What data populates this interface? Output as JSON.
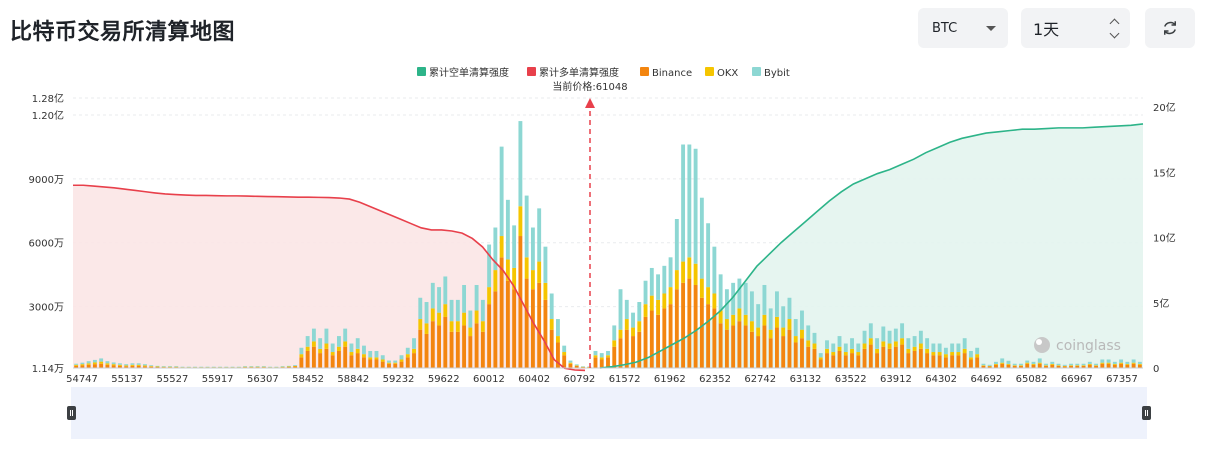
{
  "title": "比特币交易所清算地图",
  "controls": {
    "symbol": "BTC",
    "period": "1天",
    "refresh_icon": "refresh-icon"
  },
  "colors": {
    "short_cum": "#2db489",
    "long_cum": "#e8404b",
    "binance": "#f3850f",
    "okx": "#f5c500",
    "bybit": "#8dd7d3"
  },
  "watermark": "coinglass",
  "chart_data": {
    "type": "bar",
    "current_price_label": "当前价格:61048",
    "current_price": 61048,
    "legend": [
      "累计空单清算强度",
      "累计多单清算强度",
      "Binance",
      "OKX",
      "Bybit"
    ],
    "legend_placement": "top-center",
    "x_ticks": [
      "54747",
      "55137",
      "55527",
      "55917",
      "56307",
      "58452",
      "58842",
      "59232",
      "59622",
      "60012",
      "60402",
      "60792",
      "61572",
      "61962",
      "62352",
      "62742",
      "63132",
      "63522",
      "63912",
      "64302",
      "64692",
      "65082",
      "66967",
      "67357"
    ],
    "y_left_ticks": [
      "1.14万",
      "3000万",
      "6000万",
      "9000万",
      "1.20亿",
      "1.28亿"
    ],
    "y_left_values": [
      0.0114,
      0.3,
      0.6,
      0.9,
      1.2,
      1.28
    ],
    "y_left_unit": "亿",
    "y_right_ticks": [
      "0",
      "5亿",
      "10亿",
      "15亿",
      "20亿"
    ],
    "y_right_values": [
      0,
      5,
      10,
      15,
      20
    ],
    "long_cumulative": [
      0.87,
      0.87,
      0.866,
      0.862,
      0.858,
      0.852,
      0.846,
      0.84,
      0.834,
      0.829,
      0.826,
      0.824,
      0.822,
      0.822,
      0.821,
      0.82,
      0.82,
      0.819,
      0.818,
      0.817,
      0.816,
      0.815,
      0.814,
      0.814,
      0.813,
      0.812,
      0.81,
      0.805,
      0.79,
      0.77,
      0.75,
      0.73,
      0.71,
      0.69,
      0.67,
      0.66,
      0.66,
      0.655,
      0.645,
      0.62,
      0.58,
      0.52,
      0.47,
      0.4,
      0.31,
      0.22,
      0.14,
      0.05,
      0.01,
      0.002,
      0
    ],
    "short_cumulative": [
      0,
      0.1,
      0.25,
      0.45,
      0.8,
      1.3,
      1.8,
      2.3,
      2.9,
      3.6,
      4.4,
      5.4,
      6.6,
      7.8,
      8.7,
      9.6,
      10.4,
      11.2,
      12,
      12.8,
      13.5,
      14.1,
      14.5,
      14.9,
      15.2,
      15.6,
      16,
      16.5,
      16.9,
      17.3,
      17.6,
      17.8,
      18,
      18.1,
      18.2,
      18.3,
      18.3,
      18.35,
      18.4,
      18.4,
      18.4,
      18.45,
      18.5,
      18.55,
      18.6,
      18.7
    ],
    "binance": [
      0.01,
      0.012,
      0.015,
      0.018,
      0.02,
      0.015,
      0.012,
      0.01,
      0.008,
      0.01,
      0.01,
      0.008,
      0.006,
      0.005,
      0.004,
      0.004,
      0.004,
      0.003,
      0.003,
      0.003,
      0.003,
      0.003,
      0.003,
      0.003,
      0.003,
      0.003,
      0.003,
      0.004,
      0.004,
      0.004,
      0.004,
      0.003,
      0.003,
      0.004,
      0.005,
      0.007,
      0.05,
      0.08,
      0.1,
      0.07,
      0.09,
      0.06,
      0.08,
      0.1,
      0.06,
      0.07,
      0.05,
      0.04,
      0.04,
      0.03,
      0.02,
      0.02,
      0.03,
      0.05,
      0.07,
      0.18,
      0.16,
      0.22,
      0.2,
      0.24,
      0.17,
      0.17,
      0.2,
      0.15,
      0.21,
      0.17,
      0.3,
      0.36,
      0.52,
      0.41,
      0.37,
      0.62,
      0.42,
      0.37,
      0.4,
      0.32,
      0.18,
      0.12,
      0.06,
      0.02,
      0.01,
      0.005,
      0.004,
      0.05,
      0.04,
      0.05,
      0.1,
      0.14,
      0.18,
      0.15,
      0.17,
      0.24,
      0.27,
      0.25,
      0.28,
      0.3,
      0.37,
      0.4,
      0.42,
      0.39,
      0.33,
      0.3,
      0.28,
      0.21,
      0.18,
      0.2,
      0.22,
      0.2,
      0.17,
      0.15,
      0.2,
      0.14,
      0.19,
      0.15,
      0.18,
      0.12,
      0.14,
      0.1,
      0.09,
      0.04,
      0.07,
      0.06,
      0.08,
      0.06,
      0.07,
      0.06,
      0.09,
      0.11,
      0.07,
      0.1,
      0.09,
      0.1,
      0.11,
      0.07,
      0.08,
      0.09,
      0.07,
      0.06,
      0.06,
      0.05,
      0.06,
      0.06,
      0.07,
      0.04,
      0.05,
      0.01,
      0.008,
      0.015,
      0.02,
      0.015,
      0.01,
      0.01,
      0.02,
      0.015,
      0.02,
      0.01,
      0.015,
      0.01,
      0.008,
      0.01,
      0.01,
      0.01,
      0.015,
      0.01,
      0.02,
      0.02,
      0.015,
      0.02,
      0.015,
      0.02,
      0.015
    ],
    "okx": [
      0.005,
      0.006,
      0.007,
      0.008,
      0.01,
      0.007,
      0.006,
      0.005,
      0.004,
      0.005,
      0.005,
      0.004,
      0.003,
      0.002,
      0.002,
      0.002,
      0.002,
      0.001,
      0.001,
      0.001,
      0.001,
      0.001,
      0.001,
      0.001,
      0.001,
      0.001,
      0.001,
      0.002,
      0.002,
      0.002,
      0.002,
      0.001,
      0.001,
      0.002,
      0.002,
      0.003,
      0.015,
      0.02,
      0.025,
      0.02,
      0.025,
      0.015,
      0.02,
      0.025,
      0.015,
      0.02,
      0.015,
      0.01,
      0.01,
      0.01,
      0.005,
      0.005,
      0.01,
      0.015,
      0.02,
      0.05,
      0.05,
      0.06,
      0.06,
      0.06,
      0.05,
      0.05,
      0.06,
      0.04,
      0.06,
      0.05,
      0.08,
      0.1,
      0.1,
      0.1,
      0.1,
      0.14,
      0.1,
      0.09,
      0.1,
      0.08,
      0.05,
      0.03,
      0.015,
      0.005,
      0.002,
      0.001,
      0.001,
      0.01,
      0.01,
      0.01,
      0.03,
      0.04,
      0.05,
      0.04,
      0.05,
      0.06,
      0.07,
      0.07,
      0.07,
      0.08,
      0.09,
      0.1,
      0.1,
      0.1,
      0.09,
      0.08,
      0.07,
      0.06,
      0.05,
      0.05,
      0.06,
      0.05,
      0.05,
      0.04,
      0.05,
      0.04,
      0.05,
      0.04,
      0.05,
      0.03,
      0.04,
      0.03,
      0.025,
      0.01,
      0.02,
      0.015,
      0.02,
      0.015,
      0.02,
      0.015,
      0.025,
      0.03,
      0.02,
      0.025,
      0.025,
      0.025,
      0.03,
      0.02,
      0.02,
      0.025,
      0.02,
      0.015,
      0.015,
      0.015,
      0.015,
      0.015,
      0.02,
      0.01,
      0.015,
      0.003,
      0.002,
      0.004,
      0.005,
      0.004,
      0.003,
      0.003,
      0.005,
      0.004,
      0.005,
      0.003,
      0.004,
      0.003,
      0.002,
      0.003,
      0.003,
      0.003,
      0.004,
      0.003,
      0.005,
      0.005,
      0.004,
      0.005,
      0.004,
      0.005,
      0.004
    ],
    "bybit": [
      0.005,
      0.007,
      0.01,
      0.012,
      0.015,
      0.01,
      0.008,
      0.007,
      0.006,
      0.007,
      0.007,
      0.006,
      0.004,
      0.003,
      0.003,
      0.003,
      0.003,
      0.002,
      0.002,
      0.002,
      0.002,
      0.002,
      0.002,
      0.002,
      0.002,
      0.002,
      0.002,
      0.003,
      0.003,
      0.003,
      0.003,
      0.002,
      0.002,
      0.003,
      0.003,
      0.004,
      0.03,
      0.05,
      0.06,
      0.05,
      0.07,
      0.04,
      0.05,
      0.06,
      0.04,
      0.05,
      0.04,
      0.03,
      0.03,
      0.02,
      0.01,
      0.01,
      0.02,
      0.03,
      0.05,
      0.1,
      0.1,
      0.12,
      0.12,
      0.13,
      0.1,
      0.1,
      0.13,
      0.08,
      0.12,
      0.1,
      0.2,
      0.2,
      0.42,
      0.28,
      0.2,
      0.4,
      0.29,
      0.2,
      0.25,
      0.17,
      0.12,
      0.08,
      0.03,
      0.01,
      0.005,
      0.002,
      0.002,
      0.02,
      0.02,
      0.02,
      0.07,
      0.19,
      0.09,
      0.07,
      0.09,
      0.11,
      0.13,
      0.12,
      0.13,
      0.14,
      0.24,
      0.55,
      0.53,
      0.54,
      0.38,
      0.3,
      0.22,
      0.17,
      0.14,
      0.15,
      0.14,
      0.15,
      0.14,
      0.11,
      0.14,
      0.1,
      0.12,
      0.1,
      0.1,
      0.08,
      0.09,
      0.07,
      0.05,
      0.02,
      0.04,
      0.04,
      0.05,
      0.04,
      0.05,
      0.04,
      0.06,
      0.07,
      0.05,
      0.07,
      0.06,
      0.06,
      0.07,
      0.05,
      0.05,
      0.06,
      0.05,
      0.04,
      0.04,
      0.03,
      0.04,
      0.04,
      0.05,
      0.03,
      0.03,
      0.007,
      0.005,
      0.01,
      0.02,
      0.015,
      0.007,
      0.007,
      0.01,
      0.01,
      0.02,
      0.007,
      0.01,
      0.007,
      0.005,
      0.007,
      0.007,
      0.007,
      0.01,
      0.007,
      0.015,
      0.015,
      0.01,
      0.015,
      0.01,
      0.015,
      0.01
    ]
  }
}
